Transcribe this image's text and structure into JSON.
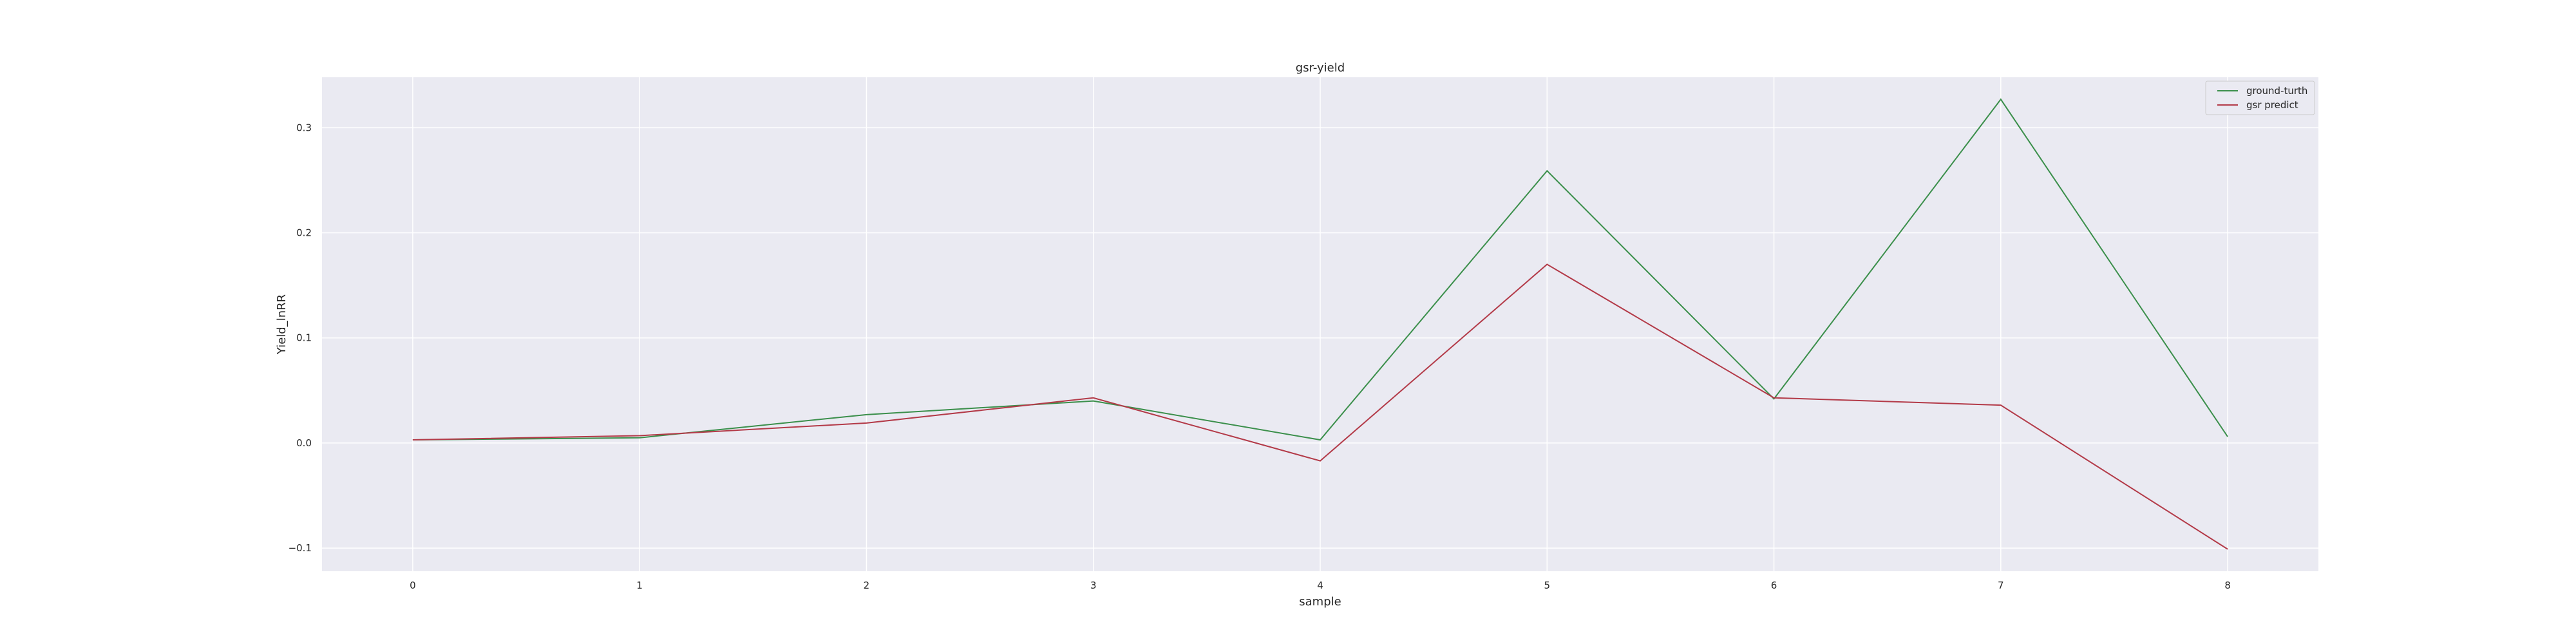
{
  "chart_data": {
    "type": "line",
    "title": "gsr-yield",
    "xlabel": "sample",
    "ylabel": "Yield_lnRR",
    "x": [
      0,
      1,
      2,
      3,
      4,
      5,
      6,
      7,
      8
    ],
    "xlim": [
      -0.4,
      8.4
    ],
    "ylim": [
      -0.122,
      0.348
    ],
    "xticks": [
      0,
      1,
      2,
      3,
      4,
      5,
      6,
      7,
      8
    ],
    "yticks": [
      -0.1,
      0.0,
      0.1,
      0.2,
      0.3
    ],
    "ytick_labels": [
      "−0.1",
      "0.0",
      "0.1",
      "0.2",
      "0.3"
    ],
    "grid": true,
    "legend_position": "top-right",
    "background": "#eaeaf2",
    "series": [
      {
        "name": "ground-turth",
        "color": "#3b8f4b",
        "values": [
          0.003,
          0.005,
          0.027,
          0.04,
          0.003,
          0.259,
          0.042,
          0.327,
          0.006
        ]
      },
      {
        "name": "gsr predict",
        "color": "#b33a48",
        "values": [
          0.003,
          0.007,
          0.019,
          0.043,
          -0.017,
          0.17,
          0.043,
          0.036,
          -0.101
        ]
      }
    ]
  }
}
